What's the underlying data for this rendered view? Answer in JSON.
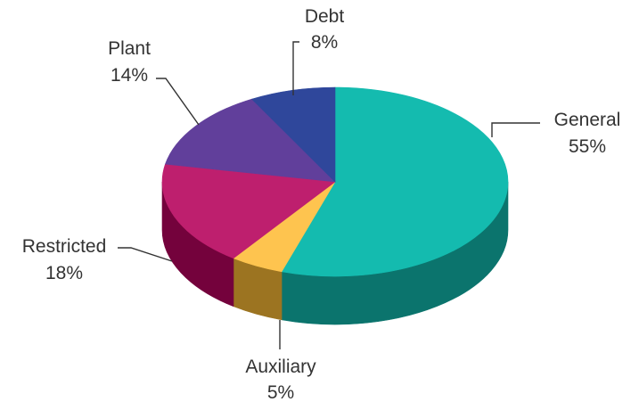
{
  "chart_data": {
    "type": "pie",
    "style": "3d",
    "title": "",
    "legend": "none",
    "slices": [
      {
        "label": "General",
        "value": 55,
        "value_label": "55%",
        "color": "#14BBAF",
        "side_color": "#0B746D"
      },
      {
        "label": "Auxiliary",
        "value": 5,
        "value_label": "5%",
        "color": "#FEC44F",
        "side_color": "#9C7421"
      },
      {
        "label": "Restricted",
        "value": 18,
        "value_label": "18%",
        "color": "#BE1F6E",
        "side_color": "#74023C"
      },
      {
        "label": "Plant",
        "value": 14,
        "value_label": "14%",
        "color": "#613F9B",
        "side_color": "#3B2460"
      },
      {
        "label": "Debt",
        "value": 8,
        "value_label": "8%",
        "color": "#2F479B",
        "side_color": "#1C2A5E"
      }
    ]
  }
}
